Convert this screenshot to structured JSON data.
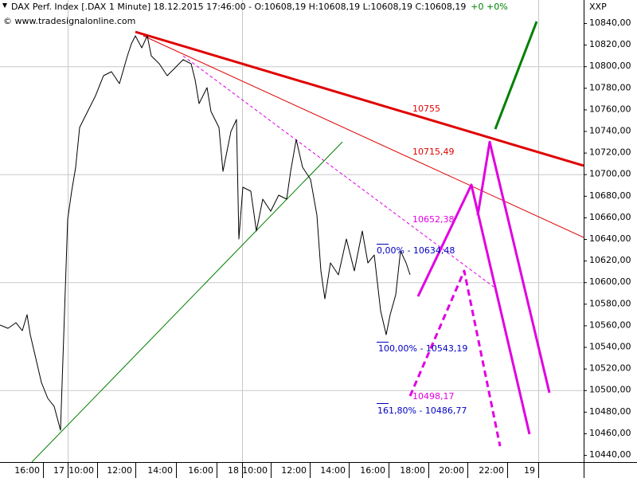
{
  "chart_data": {
    "type": "line",
    "title": "DAX Perf. Index [.DAX  1 Minute] 18.12.2015 17:46:00 - O:10608,19 H:10608,19 L:10608,19 C:10608,19",
    "change": "+0 +0%",
    "source": "© www.tradesignalonline.com",
    "axis_name": "XXP",
    "xlim": [
      0,
      29.32
    ],
    "ylim": [
      10433.4,
      10861.4
    ],
    "xticks": [
      {
        "value": 2.16,
        "label": "16:00"
      },
      {
        "value": 3.4,
        "label": "17"
      },
      {
        "value": 4.88,
        "label": "10:00"
      },
      {
        "value": 6.8,
        "label": "12:00"
      },
      {
        "value": 8.84,
        "label": "14:00"
      },
      {
        "value": 10.88,
        "label": "16:00"
      },
      {
        "value": 12.16,
        "label": "18"
      },
      {
        "value": 13.6,
        "label": "10:00"
      },
      {
        "value": 15.56,
        "label": "12:00"
      },
      {
        "value": 17.52,
        "label": "14:00"
      },
      {
        "value": 19.52,
        "label": "16:00"
      },
      {
        "value": 21.52,
        "label": "18:00"
      },
      {
        "value": 23.48,
        "label": "20:00"
      },
      {
        "value": 25.48,
        "label": "22:00"
      },
      {
        "value": 27.04,
        "label": "19"
      }
    ],
    "yticks": [
      {
        "value": 10440,
        "label": "10440,00"
      },
      {
        "value": 10460,
        "label": "10460,00"
      },
      {
        "value": 10480,
        "label": "10480,00"
      },
      {
        "value": 10500,
        "label": "10500,00"
      },
      {
        "value": 10520,
        "label": "10520,00"
      },
      {
        "value": 10540,
        "label": "10540,00"
      },
      {
        "value": 10560,
        "label": "10560,00"
      },
      {
        "value": 10580,
        "label": "10580,00"
      },
      {
        "value": 10600,
        "label": "10600,00"
      },
      {
        "value": 10620,
        "label": "10620,00"
      },
      {
        "value": 10640,
        "label": "10640,00"
      },
      {
        "value": 10660,
        "label": "10660,00"
      },
      {
        "value": 10680,
        "label": "10680,00"
      },
      {
        "value": 10700,
        "label": "10700,00"
      },
      {
        "value": 10720,
        "label": "10720,00"
      },
      {
        "value": 10740,
        "label": "10740,00"
      },
      {
        "value": 10760,
        "label": "10760,00"
      },
      {
        "value": 10780,
        "label": "10780,00"
      },
      {
        "value": 10800,
        "label": "10800,00"
      },
      {
        "value": 10820,
        "label": "10820,00"
      },
      {
        "value": 10840,
        "label": "10840,00"
      }
    ],
    "ygrid": [
      10500,
      10600,
      10700,
      10800
    ],
    "xgrid": [
      3.4,
      12.16,
      27.04
    ],
    "price": {
      "color": "#000000",
      "x": [
        0,
        0.4,
        0.8,
        1.12,
        1.36,
        1.52,
        1.8,
        2.08,
        2.4,
        2.72,
        3.04,
        3.4,
        3.6,
        3.8,
        4,
        4.4,
        4.8,
        5.2,
        5.6,
        6,
        6.4,
        6.6,
        6.8,
        7.12,
        7.4,
        7.6,
        8,
        8.4,
        8.8,
        9.2,
        9.6,
        9.8,
        10,
        10.4,
        10.6,
        11,
        11.2,
        11.6,
        11.88,
        12,
        12.2,
        12.6,
        12.88,
        13.2,
        13.6,
        14,
        14.4,
        14.6,
        14.88,
        15.2,
        15.6,
        15.92,
        16.12,
        16.32,
        16.6,
        17,
        17.4,
        17.8,
        18.2,
        18.48,
        18.8,
        19.12,
        19.4,
        19.6,
        19.88,
        20.12,
        20.4,
        20.6
      ],
      "values": [
        10560.3,
        10557.3,
        10562.5,
        10555.1,
        10569.9,
        10551.4,
        10529.3,
        10507.1,
        10492.4,
        10485.0,
        10462.9,
        10658.4,
        10684.3,
        10706.4,
        10743.3,
        10758.1,
        10772.8,
        10791.3,
        10795.0,
        10783.9,
        10809.7,
        10820.8,
        10828.2,
        10817.1,
        10828.2,
        10809.7,
        10802.4,
        10791.3,
        10798.7,
        10806.1,
        10802.4,
        10787.6,
        10765.5,
        10780.2,
        10758.1,
        10743.3,
        10702.7,
        10739.6,
        10750.7,
        10640.0,
        10688.0,
        10684.3,
        10647.4,
        10676.9,
        10665.8,
        10680.6,
        10676.9,
        10702.7,
        10732.2,
        10706.4,
        10695.3,
        10662.1,
        10610.5,
        10584.6,
        10617.9,
        10606.8,
        10640.0,
        10610.5,
        10647.4,
        10617.9,
        10625.2,
        10573.6,
        10551.4,
        10569.9,
        10588.4,
        10628.9,
        10617.9,
        10606.8
      ]
    },
    "drawings": [
      {
        "color": "#e00000",
        "style": "thick",
        "x": [
          6.8,
          29.32
        ],
        "values": [
          10831.9,
          10707.9
        ]
      },
      {
        "color": "#e00000",
        "style": "thin",
        "x": [
          7.2,
          29.32
        ],
        "values": [
          10828.2,
          10641.5
        ]
      },
      {
        "color": "#e000e0",
        "style": "thin-dashed",
        "x": [
          9.2,
          24.8
        ],
        "values": [
          10809.7,
          10595.7
        ]
      },
      {
        "color": "#008000",
        "style": "thin",
        "x": [
          1.6,
          17.2
        ],
        "values": [
          10433.4,
          10730.0
        ]
      },
      {
        "color": "#e000e0",
        "style": "thick",
        "x": [
          21,
          23.68,
          26.6
        ],
        "values": [
          10586.9,
          10690.2,
          10459.2
        ]
      },
      {
        "color": "#e000e0",
        "style": "thick",
        "x": [
          24,
          24.6,
          27.6
        ],
        "values": [
          10662.1,
          10730.0,
          10497.6
        ]
      },
      {
        "color": "#e000e0",
        "style": "thick-dashed",
        "x": [
          20.6,
          23.32,
          25.12
        ],
        "values": [
          10494.6,
          10610.5,
          10448.1
        ]
      },
      {
        "color": "#008000",
        "style": "thick",
        "x": [
          24.88,
          26.96
        ],
        "values": [
          10741.8,
          10841.5
        ]
      }
    ],
    "annotations": [
      {
        "text": "10755",
        "color": "#e00000"
      },
      {
        "text": "10715,49",
        "color": "#e00000"
      },
      {
        "text": "10652,38",
        "color": "#e000e0"
      },
      {
        "text": "0,00% - 10634,48",
        "color": "#0000c0"
      },
      {
        "text": "100,00% - 10543,19",
        "color": "#0000c0"
      },
      {
        "text": "10498,17",
        "color": "#e000e0"
      },
      {
        "text": "161,80% - 10486,77",
        "color": "#0000c0"
      }
    ]
  }
}
